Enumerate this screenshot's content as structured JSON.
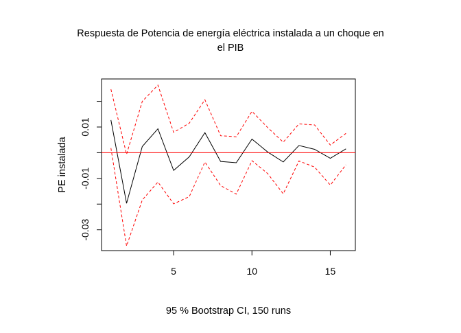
{
  "chart_data": {
    "type": "line",
    "title_line1": "Respuesta de Potencia de energía eléctrica instalada a un choque en",
    "title_line2": "el PIB",
    "xlabel": "95 % Bootstrap CI,  150 runs",
    "ylabel": "PE instalada",
    "x": [
      1,
      2,
      3,
      4,
      5,
      6,
      7,
      8,
      9,
      10,
      11,
      12,
      13,
      14,
      15,
      16
    ],
    "xlim": [
      0.4,
      16.6
    ],
    "ylim": [
      -0.0381,
      0.0287
    ],
    "xticks": [
      5,
      10,
      15
    ],
    "xtick_labels": [
      "5",
      "10",
      "15"
    ],
    "yticks": [
      -0.03,
      -0.01,
      0.01
    ],
    "ytick_labels": [
      "-0.03",
      "-0.01",
      "0.01"
    ],
    "yticks_minor": [
      -0.02,
      0.0,
      0.02
    ],
    "grid": false,
    "zero_line": 0,
    "series": [
      {
        "values": [
          0.0127,
          -0.0197,
          0.0024,
          0.0093,
          -0.0069,
          -0.0016,
          0.0078,
          -0.0034,
          -0.0039,
          0.0053,
          0.0003,
          -0.0036,
          0.0028,
          0.0013,
          -0.0022,
          0.0015
        ],
        "color": "#000000",
        "style": "solid"
      },
      {
        "values": [
          0.0247,
          -0.0006,
          0.02,
          0.0263,
          0.0079,
          0.0115,
          0.0206,
          0.0066,
          0.0062,
          0.0161,
          0.0098,
          0.0041,
          0.0112,
          0.0108,
          0.003,
          0.0075
        ],
        "color": "#ff0000",
        "style": "dashed"
      },
      {
        "values": [
          0.0018,
          -0.0363,
          -0.0184,
          -0.0114,
          -0.0199,
          -0.0171,
          -0.0036,
          -0.0128,
          -0.0161,
          -0.0031,
          -0.0081,
          -0.016,
          -0.0032,
          -0.0056,
          -0.0126,
          -0.0047
        ],
        "color": "#ff0000",
        "style": "dashed"
      }
    ]
  }
}
